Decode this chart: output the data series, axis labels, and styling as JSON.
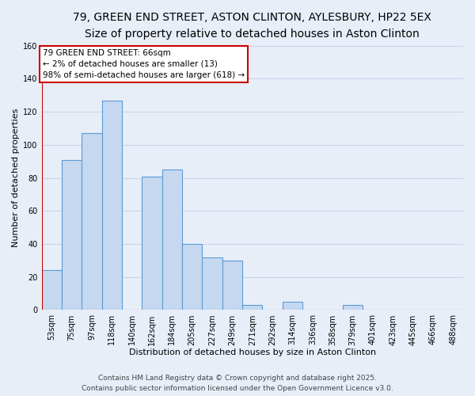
{
  "title": "79, GREEN END STREET, ASTON CLINTON, AYLESBURY, HP22 5EX",
  "subtitle": "Size of property relative to detached houses in Aston Clinton",
  "xlabel": "Distribution of detached houses by size in Aston Clinton",
  "ylabel": "Number of detached properties",
  "bins": [
    "53sqm",
    "75sqm",
    "97sqm",
    "118sqm",
    "140sqm",
    "162sqm",
    "184sqm",
    "205sqm",
    "227sqm",
    "249sqm",
    "271sqm",
    "292sqm",
    "314sqm",
    "336sqm",
    "358sqm",
    "379sqm",
    "401sqm",
    "423sqm",
    "445sqm",
    "466sqm",
    "488sqm"
  ],
  "values": [
    24,
    91,
    107,
    127,
    0,
    81,
    85,
    40,
    32,
    30,
    3,
    0,
    5,
    0,
    0,
    3,
    0,
    0,
    0,
    0,
    0
  ],
  "bar_color": "#c5d8f0",
  "bar_edge_color": "#5b9bd5",
  "highlight_line_color": "#cc0000",
  "annotation_text": "79 GREEN END STREET: 66sqm\n← 2% of detached houses are smaller (13)\n98% of semi-detached houses are larger (618) →",
  "annotation_box_color": "#ffffff",
  "annotation_box_edge_color": "#cc0000",
  "ylim": [
    0,
    160
  ],
  "yticks": [
    0,
    20,
    40,
    60,
    80,
    100,
    120,
    140,
    160
  ],
  "footer_line1": "Contains HM Land Registry data © Crown copyright and database right 2025.",
  "footer_line2": "Contains public sector information licensed under the Open Government Licence v3.0.",
  "bg_color": "#e8eef8",
  "grid_color": "#c8d4e8",
  "title_fontsize": 10,
  "subtitle_fontsize": 8.5,
  "axis_label_fontsize": 8,
  "tick_fontsize": 7,
  "annotation_fontsize": 7.5,
  "footer_fontsize": 6.5,
  "red_line_x": -0.5
}
